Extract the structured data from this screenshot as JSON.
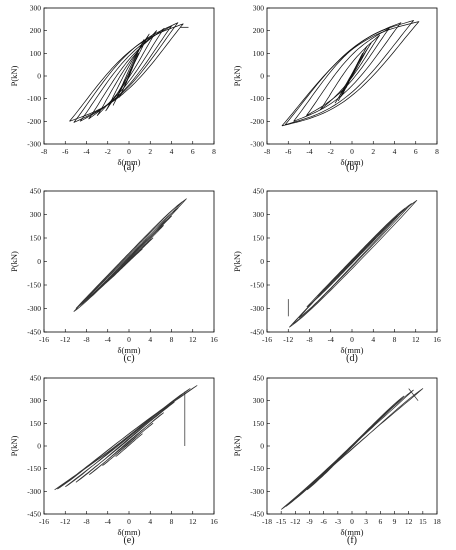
{
  "chart_data": [
    {
      "type": "line",
      "caption": "(a)",
      "xlabel": "δ(mm)",
      "ylabel": "P(kN)",
      "xlim": [
        -8,
        8
      ],
      "ylim": [
        -300,
        300
      ],
      "xticks": [
        -8,
        -6,
        -4,
        -2,
        0,
        2,
        4,
        6,
        8
      ],
      "yticks": [
        -300,
        -200,
        -100,
        0,
        100,
        200,
        300
      ],
      "line_color": "#111111",
      "loops": [
        {
          "dmax": 0.4,
          "dmin": -0.4,
          "pmax": 45,
          "pmin": -45,
          "pinch": 0.25,
          "offset": 2
        },
        {
          "dmax": 0.9,
          "dmin": -0.9,
          "pmax": 100,
          "pmin": -95,
          "pinch": 0.25,
          "offset": 8
        },
        {
          "dmax": 1.4,
          "dmin": -1.5,
          "pmax": 160,
          "pmin": -130,
          "pinch": 0.3,
          "offset": 20
        },
        {
          "dmax": 1.9,
          "dmin": -2.2,
          "pmax": 185,
          "pmin": -155,
          "pinch": 0.35,
          "offset": 35
        },
        {
          "dmax": 2.6,
          "dmin": -3.0,
          "pmax": 200,
          "pmin": -175,
          "pinch": 0.4,
          "offset": 55
        },
        {
          "dmax": 3.3,
          "dmin": -3.8,
          "pmax": 210,
          "pmin": -190,
          "pinch": 0.45,
          "offset": 75
        },
        {
          "dmax": 4.0,
          "dmin": -4.6,
          "pmax": 220,
          "pmin": -200,
          "pinch": 0.5,
          "offset": 95
        },
        {
          "dmax": 4.6,
          "dmin": -5.2,
          "pmax": 235,
          "pmin": -205,
          "pinch": 0.55,
          "offset": 110
        },
        {
          "dmax": 5.1,
          "dmin": -5.6,
          "pmax": 230,
          "pmin": -200,
          "pinch": 0.55,
          "offset": 115
        }
      ],
      "tail": [
        [
          4.8,
          215
        ],
        [
          5.6,
          215
        ]
      ]
    },
    {
      "type": "line",
      "caption": "(b)",
      "xlabel": "δ(mm)",
      "ylabel": "P(kN)",
      "xlim": [
        -8,
        8
      ],
      "ylim": [
        -300,
        300
      ],
      "xticks": [
        -8,
        -6,
        -4,
        -2,
        0,
        2,
        4,
        6,
        8
      ],
      "yticks": [
        -300,
        -200,
        -100,
        0,
        100,
        200,
        300
      ],
      "line_color": "#111111",
      "loops": [
        {
          "dmax": 0.6,
          "dmin": -0.6,
          "pmax": 60,
          "pmin": -55,
          "pinch": 0.3,
          "offset": 5
        },
        {
          "dmax": 1.0,
          "dmin": -1.0,
          "pmax": 100,
          "pmin": -90,
          "pinch": 0.3,
          "offset": 10
        },
        {
          "dmax": 1.4,
          "dmin": -1.3,
          "pmax": 130,
          "pmin": -110,
          "pinch": 0.3,
          "offset": 15
        },
        {
          "dmax": 1.8,
          "dmin": -1.6,
          "pmax": 145,
          "pmin": -120,
          "pinch": 0.35,
          "offset": 20
        },
        {
          "dmax": 2.6,
          "dmin": -3.0,
          "pmax": 180,
          "pmin": -150,
          "pinch": 0.35,
          "offset": 50
        },
        {
          "dmax": 3.5,
          "dmin": -4.3,
          "pmax": 210,
          "pmin": -175,
          "pinch": 0.4,
          "offset": 80
        },
        {
          "dmax": 4.6,
          "dmin": -5.5,
          "pmax": 235,
          "pmin": -200,
          "pinch": 0.45,
          "offset": 110
        },
        {
          "dmax": 5.8,
          "dmin": -6.3,
          "pmax": 245,
          "pmin": -215,
          "pinch": 0.5,
          "offset": 130
        },
        {
          "dmax": 6.3,
          "dmin": -6.6,
          "pmax": 240,
          "pmin": -220,
          "pinch": 0.5,
          "offset": 135
        }
      ],
      "tail": []
    },
    {
      "type": "line",
      "caption": "(c)",
      "xlabel": "δ(mm)",
      "ylabel": "P(kN)",
      "xlim": [
        -16,
        16
      ],
      "ylim": [
        -450,
        450
      ],
      "xticks": [
        -16,
        -12,
        -8,
        -4,
        0,
        4,
        8,
        12,
        16
      ],
      "yticks": [
        -450,
        -300,
        -150,
        0,
        150,
        300,
        450
      ],
      "line_color": "#333333",
      "loops": [
        {
          "dmax": 2.5,
          "dmin": -2.5,
          "pmax": 80,
          "pmin": -75,
          "pinch": 0.3,
          "offset": 6
        },
        {
          "dmax": 4.5,
          "dmin": -4.5,
          "pmax": 150,
          "pmin": -140,
          "pinch": 0.3,
          "offset": 10
        },
        {
          "dmax": 6.5,
          "dmin": -6.5,
          "pmax": 230,
          "pmin": -200,
          "pinch": 0.35,
          "offset": 15
        },
        {
          "dmax": 8.0,
          "dmin": -8.0,
          "pmax": 290,
          "pmin": -240,
          "pinch": 0.35,
          "offset": 20
        },
        {
          "dmax": 9.2,
          "dmin": -9.2,
          "pmax": 340,
          "pmin": -280,
          "pinch": 0.4,
          "offset": 24
        },
        {
          "dmax": 10.0,
          "dmin": -10.0,
          "pmax": 380,
          "pmin": -300,
          "pinch": 0.4,
          "offset": 28
        },
        {
          "dmax": 10.8,
          "dmin": -10.4,
          "pmax": 400,
          "pmin": -320,
          "pinch": 0.45,
          "offset": 30
        }
      ],
      "tail": []
    },
    {
      "type": "line",
      "caption": "(d)",
      "xlabel": "δ(mm)",
      "ylabel": "P(kN)",
      "xlim": [
        -16,
        16
      ],
      "ylim": [
        -450,
        450
      ],
      "xticks": [
        -16,
        -12,
        -8,
        -4,
        0,
        4,
        8,
        12,
        16
      ],
      "yticks": [
        -450,
        -300,
        -150,
        0,
        150,
        300,
        450
      ],
      "line_color": "#333333",
      "loops": [
        {
          "dmax": 2.5,
          "dmin": -2.5,
          "pmax": 80,
          "pmin": -80,
          "pinch": 0.3,
          "offset": 6
        },
        {
          "dmax": 4.5,
          "dmin": -4.5,
          "pmax": 150,
          "pmin": -150,
          "pinch": 0.3,
          "offset": 10
        },
        {
          "dmax": 6.5,
          "dmin": -6.5,
          "pmax": 220,
          "pmin": -220,
          "pinch": 0.35,
          "offset": 15
        },
        {
          "dmax": 8.5,
          "dmin": -8.5,
          "pmax": 290,
          "pmin": -290,
          "pinch": 0.35,
          "offset": 20
        },
        {
          "dmax": 10.0,
          "dmin": -10.0,
          "pmax": 340,
          "pmin": -360,
          "pinch": 0.4,
          "offset": 25
        },
        {
          "dmax": 11.2,
          "dmin": -11.2,
          "pmax": 370,
          "pmin": -400,
          "pinch": 0.4,
          "offset": 28
        },
        {
          "dmax": 12.2,
          "dmin": -11.8,
          "pmax": 390,
          "pmin": -420,
          "pinch": 0.45,
          "offset": 30
        }
      ],
      "tail": [
        [
          -12.0,
          -240
        ],
        [
          -12.0,
          -350
        ]
      ]
    },
    {
      "type": "line",
      "caption": "(e)",
      "xlabel": "δ(mm)",
      "ylabel": "P(kN)",
      "xlim": [
        -16,
        16
      ],
      "ylim": [
        -450,
        450
      ],
      "xticks": [
        -16,
        -12,
        -8,
        -4,
        0,
        4,
        8,
        12,
        16
      ],
      "yticks": [
        -450,
        -300,
        -150,
        0,
        150,
        300,
        450
      ],
      "line_color": "#333333",
      "loops": [
        {
          "dmax": 2.5,
          "dmin": -2.5,
          "pmax": 80,
          "pmin": -70,
          "pinch": 0.3,
          "offset": 8
        },
        {
          "dmax": 4.5,
          "dmin": -5.0,
          "pmax": 150,
          "pmin": -130,
          "pinch": 0.3,
          "offset": 15
        },
        {
          "dmax": 6.5,
          "dmin": -7.5,
          "pmax": 220,
          "pmin": -190,
          "pinch": 0.35,
          "offset": 25
        },
        {
          "dmax": 8.5,
          "dmin": -10.0,
          "pmax": 290,
          "pmin": -240,
          "pinch": 0.4,
          "offset": 35
        },
        {
          "dmax": 10.0,
          "dmin": -12.0,
          "pmax": 340,
          "pmin": -270,
          "pinch": 0.45,
          "offset": 45
        },
        {
          "dmax": 11.5,
          "dmin": -13.5,
          "pmax": 380,
          "pmin": -285,
          "pinch": 0.5,
          "offset": 55
        },
        {
          "dmax": 12.8,
          "dmin": -14.0,
          "pmax": 400,
          "pmin": -290,
          "pinch": 0.5,
          "offset": 60
        }
      ],
      "tail": [
        [
          10.5,
          360
        ],
        [
          10.5,
          0
        ]
      ]
    },
    {
      "type": "line",
      "caption": "(f)",
      "xlabel": "δ(mm)",
      "ylabel": "P(kN)",
      "xlim": [
        -18,
        18
      ],
      "ylim": [
        -450,
        450
      ],
      "xticks": [
        -18,
        -15,
        -12,
        -9,
        -6,
        -3,
        0,
        3,
        6,
        9,
        12,
        15,
        18
      ],
      "yticks": [
        -450,
        -300,
        -150,
        0,
        150,
        300,
        450
      ],
      "line_color": "#333333",
      "loops": [
        {
          "dmax": 3.0,
          "dmin": -3.0,
          "pmax": 90,
          "pmin": -85,
          "pinch": 0.3,
          "offset": 8
        },
        {
          "dmax": 5.0,
          "dmin": -5.0,
          "pmax": 150,
          "pmin": -150,
          "pinch": 0.3,
          "offset": 15
        },
        {
          "dmax": 7.0,
          "dmin": -7.0,
          "pmax": 210,
          "pmin": -220,
          "pinch": 0.35,
          "offset": 25
        },
        {
          "dmax": 9.0,
          "dmin": -9.5,
          "pmax": 270,
          "pmin": -290,
          "pinch": 0.4,
          "offset": 35
        },
        {
          "dmax": 11.0,
          "dmin": -12.0,
          "pmax": 330,
          "pmin": -350,
          "pinch": 0.45,
          "offset": 45
        },
        {
          "dmax": 13.0,
          "dmin": -14.0,
          "pmax": 370,
          "pmin": -400,
          "pinch": 0.5,
          "offset": 55
        },
        {
          "dmax": 15.0,
          "dmin": -15.0,
          "pmax": 380,
          "pmin": -420,
          "pinch": 0.5,
          "offset": 60
        }
      ],
      "tail": [
        [
          12.0,
          380
        ],
        [
          14.0,
          300
        ]
      ]
    }
  ]
}
